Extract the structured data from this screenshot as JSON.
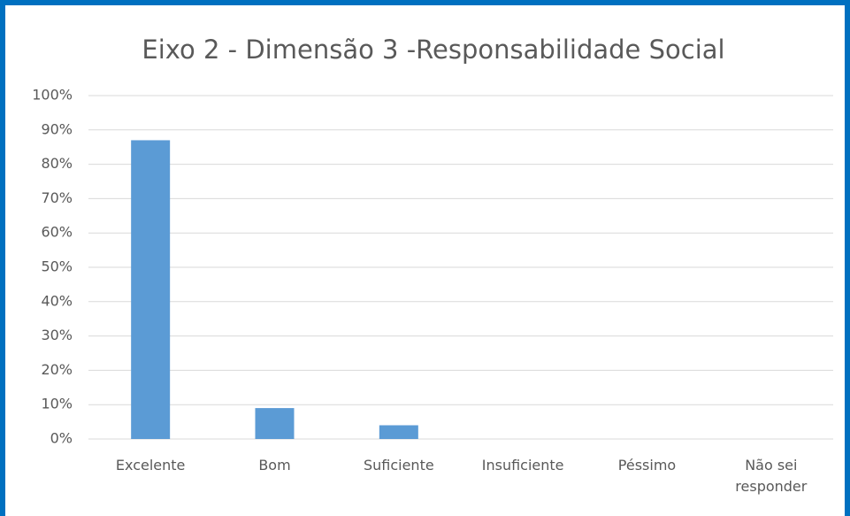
{
  "chart_data": {
    "type": "bar",
    "title": "Eixo 2 - Dimensão 3 -Responsabilidade Social",
    "categories": [
      "Excelente",
      "Bom",
      "Suficiente",
      "Insuficiente",
      "Péssimo",
      "Não sei responder"
    ],
    "values": [
      87,
      9,
      4,
      0,
      0,
      0
    ],
    "color": "#5b9bd5",
    "ylim": [
      0,
      100
    ],
    "yticks": [
      {
        "value": 0,
        "label": "0%"
      },
      {
        "value": 10,
        "label": "10%"
      },
      {
        "value": 20,
        "label": "20%"
      },
      {
        "value": 30,
        "label": "30%"
      },
      {
        "value": 40,
        "label": "40%"
      },
      {
        "value": 50,
        "label": "50%"
      },
      {
        "value": 60,
        "label": "60%"
      },
      {
        "value": 70,
        "label": "70%"
      },
      {
        "value": 80,
        "label": "80%"
      },
      {
        "value": 90,
        "label": "90%"
      },
      {
        "value": 100,
        "label": "100%"
      }
    ],
    "grid": true
  }
}
